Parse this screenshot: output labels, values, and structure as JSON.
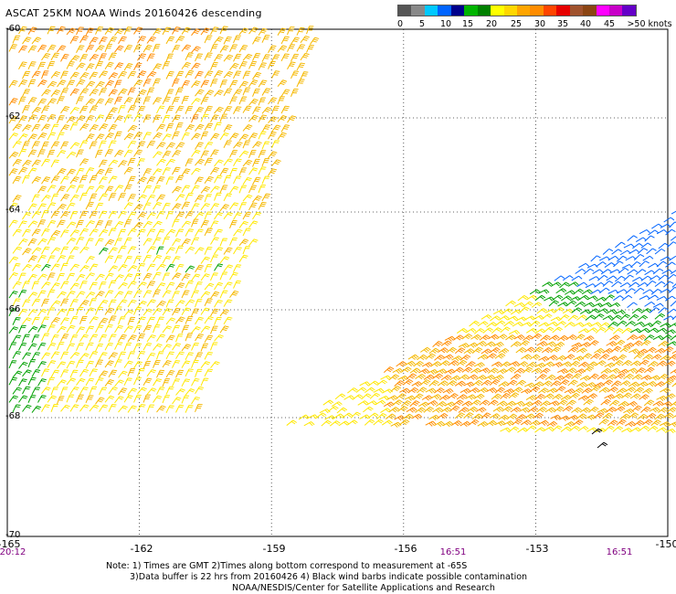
{
  "title": "ASCAT 25KM NOAA Winds 20160426 descending",
  "colorbar": {
    "colors": [
      "#555555",
      "#888888",
      "#00c8ff",
      "#0064ff",
      "#00008b",
      "#00b400",
      "#008000",
      "#ffff00",
      "#ffd700",
      "#ffa500",
      "#ff8c00",
      "#ff4500",
      "#e60000",
      "#a0522d",
      "#8b4513",
      "#ff00ff",
      "#c800c8",
      "#6400c8"
    ],
    "labels": [
      "0",
      "5",
      "10",
      "15",
      "20",
      "25",
      "30",
      "35",
      "40",
      "45",
      ">50 knots"
    ]
  },
  "axes": {
    "lat_labels": [
      "-60",
      "-62",
      "-64",
      "-66",
      "-68",
      "-70"
    ],
    "lon_labels": [
      "-165",
      "-162",
      "-159",
      "-156",
      "-153",
      "-150"
    ],
    "time_labels": [
      "20:12",
      "16:51",
      "16:51"
    ]
  },
  "notes": [
    "Note: 1) Times are GMT 2)Times along bottom correspond to measurement at -65S",
    "3)Data buffer is 22 hrs from 20160426 4) Black wind barbs indicate possible contamination",
    "NOAA/NESDIS/Center for Satellite Applications and Research"
  ],
  "map_data": {
    "type": "wind-barb-map",
    "lat_range": [
      -70,
      -60
    ],
    "lon_range": [
      -165,
      -150
    ],
    "grid": true,
    "swaths": [
      {
        "name_hint": "west swath",
        "lon_range": [
          -165,
          -158.7
        ],
        "lat_range": [
          -68.1,
          -60
        ],
        "dominant_speeds_knots": "20-35"
      },
      {
        "name_hint": "east swath",
        "lon_range": [
          -159.1,
          -150
        ],
        "lat_range": [
          -68.6,
          -64
        ],
        "dominant_speeds_knots": "10-30"
      }
    ]
  }
}
